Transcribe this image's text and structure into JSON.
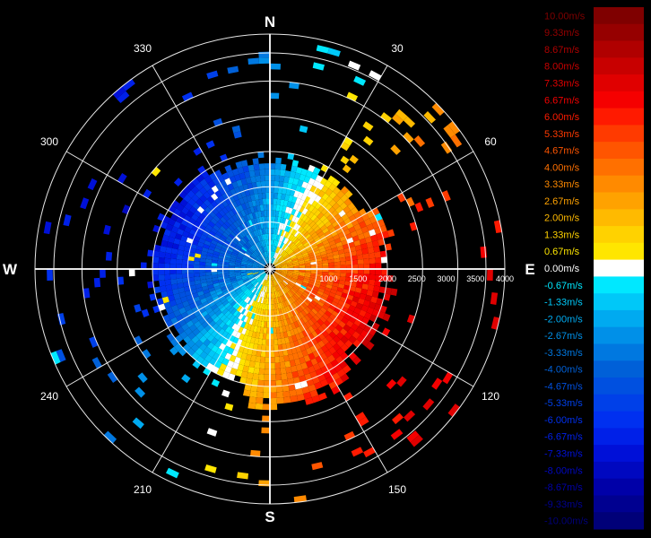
{
  "chart_data": {
    "type": "heatmap",
    "subtype": "polar-ppi",
    "projection": "polar",
    "title": "",
    "cardinal_labels": [
      "N",
      "E",
      "S",
      "W"
    ],
    "azimuth_labels": [
      "30",
      "60",
      "120",
      "150",
      "210",
      "240",
      "300",
      "330"
    ],
    "azimuth_tick_values": [
      30,
      60,
      120,
      150,
      210,
      240,
      300,
      330
    ],
    "range_labels": [
      "1000",
      "1500",
      "2000",
      "2500",
      "3000",
      "3500",
      "4000"
    ],
    "range_unit": "m",
    "range_max": 4000,
    "value_unit": "m/s",
    "colorbar": {
      "range": [
        -10,
        10
      ],
      "labels": [
        "10.00m/s",
        "9.33m/s",
        "8.67m/s",
        "8.00m/s",
        "7.33m/s",
        "6.67m/s",
        "6.00m/s",
        "5.33m/s",
        "4.67m/s",
        "4.00m/s",
        "3.33m/s",
        "2.67m/s",
        "2.00m/s",
        "1.33m/s",
        "0.67m/s",
        "0.00m/s",
        "-0.67m/s",
        "-1.33m/s",
        "-2.00m/s",
        "-2.67m/s",
        "-3.33m/s",
        "-4.00m/s",
        "-4.67m/s",
        "-5.33m/s",
        "-6.00m/s",
        "-6.67m/s",
        "-7.33m/s",
        "-8.00m/s",
        "-8.67m/s",
        "-9.33m/s",
        "-10.00m/s"
      ],
      "colors": [
        "#7f0000",
        "#960000",
        "#b00000",
        "#c80000",
        "#e00000",
        "#f50000",
        "#ff1a00",
        "#ff3a00",
        "#ff5500",
        "#ff7000",
        "#ff8a00",
        "#ffa200",
        "#ffba00",
        "#ffd200",
        "#ffe600",
        "#ffffff",
        "#00e8ff",
        "#00c8f8",
        "#00aaf0",
        "#0090e8",
        "#0078e0",
        "#0060d8",
        "#0050e0",
        "#0040e8",
        "#0030f0",
        "#0020e8",
        "#0010d8",
        "#0008c0",
        "#0000a8",
        "#000090",
        "#000078"
      ]
    }
  }
}
